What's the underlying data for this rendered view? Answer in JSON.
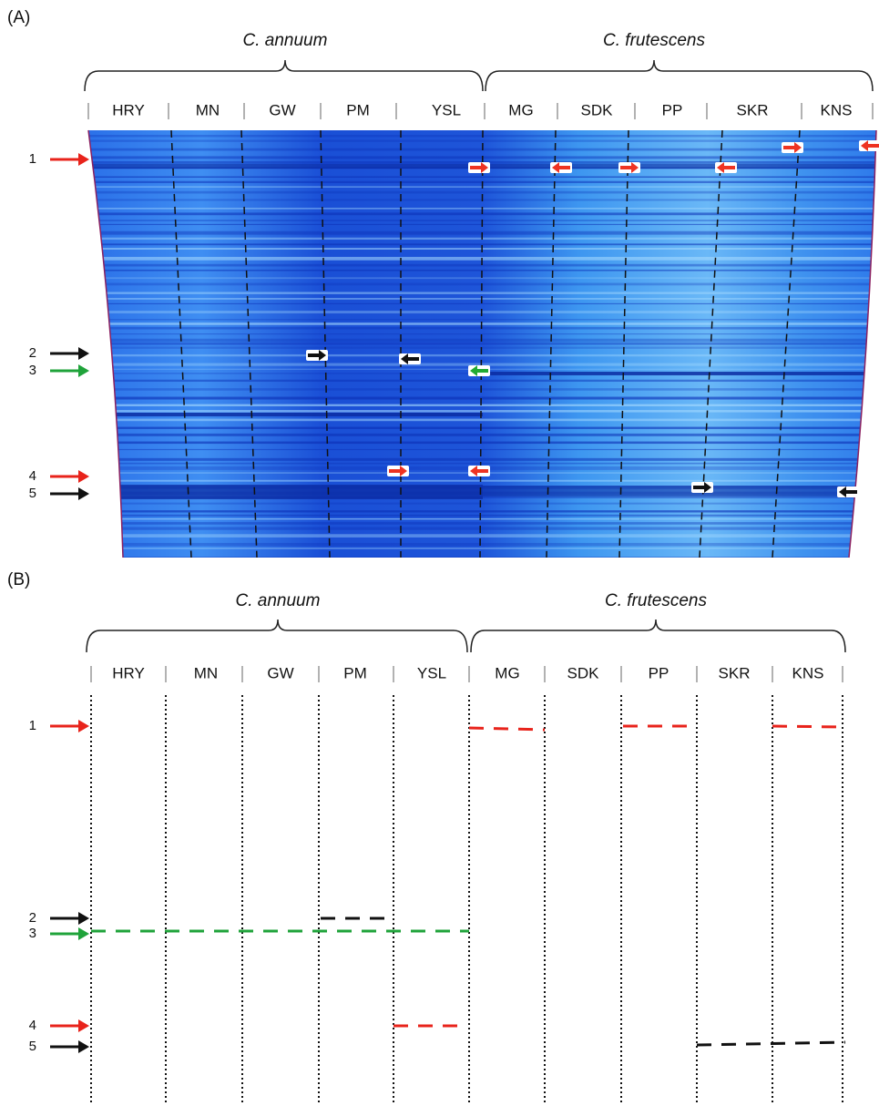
{
  "panels": [
    {
      "label": "(A)",
      "groups": [
        "C. annuum",
        "C. frutescens"
      ],
      "lanes": [
        "HRY",
        "MN",
        "GW",
        "PM",
        "YSL",
        "MG",
        "SDK",
        "PP",
        "SKR",
        "KNS"
      ],
      "markers": [
        "1",
        "2",
        "3",
        "4",
        "5"
      ]
    },
    {
      "label": "(B)",
      "groups": [
        "C. annuum",
        "C. frutescens"
      ],
      "lanes": [
        "HRY",
        "MN",
        "GW",
        "PM",
        "YSL",
        "MG",
        "SDK",
        "PP",
        "SKR",
        "KNS"
      ],
      "markers": [
        "1",
        "2",
        "3",
        "4",
        "5"
      ]
    }
  ]
}
